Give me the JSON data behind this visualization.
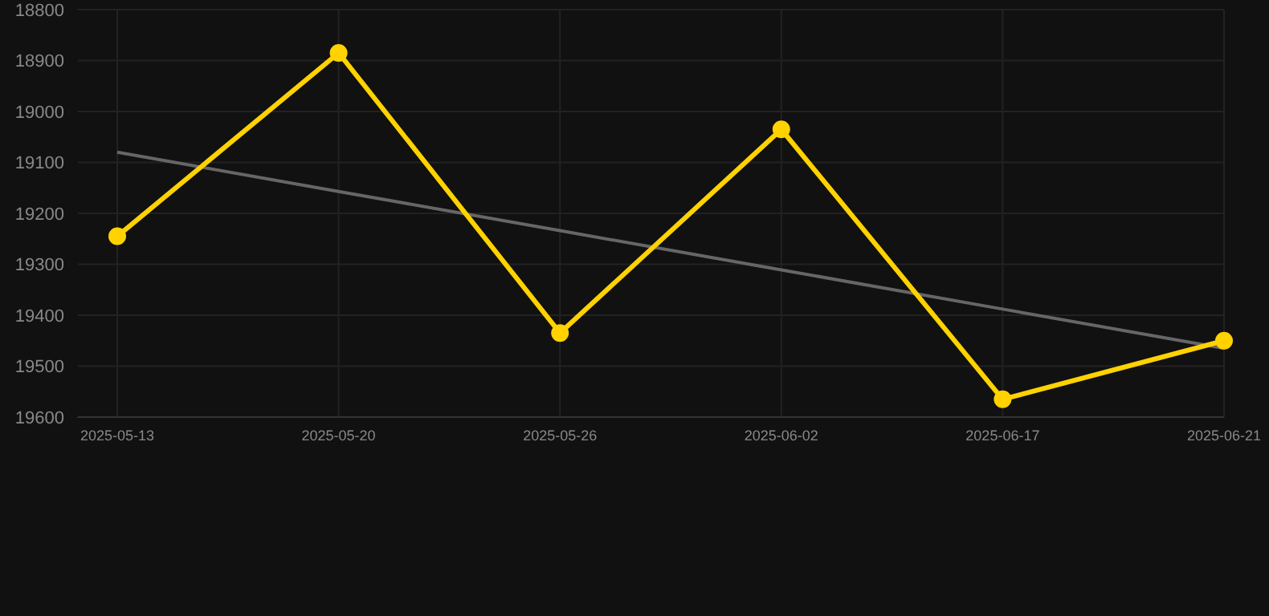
{
  "chart_data": {
    "type": "line",
    "categories": [
      "2025-05-13",
      "2025-05-20",
      "2025-05-26",
      "2025-06-02",
      "2025-06-17",
      "2025-06-21"
    ],
    "series": [
      {
        "type": "line",
        "color": "#ffd200",
        "values": [
          19245,
          18885,
          19435,
          19035,
          19565,
          19450
        ],
        "marker": "circle"
      },
      {
        "type": "line",
        "color": "#666666",
        "values": [
          19080,
          19157,
          19234,
          19311,
          19388,
          19465
        ],
        "marker": "none"
      }
    ],
    "ylim": [
      19600,
      18800
    ],
    "yticks": [
      18800,
      18900,
      19000,
      19100,
      19200,
      19300,
      19400,
      19500,
      19600
    ],
    "grid": true,
    "line_style": "solid"
  }
}
